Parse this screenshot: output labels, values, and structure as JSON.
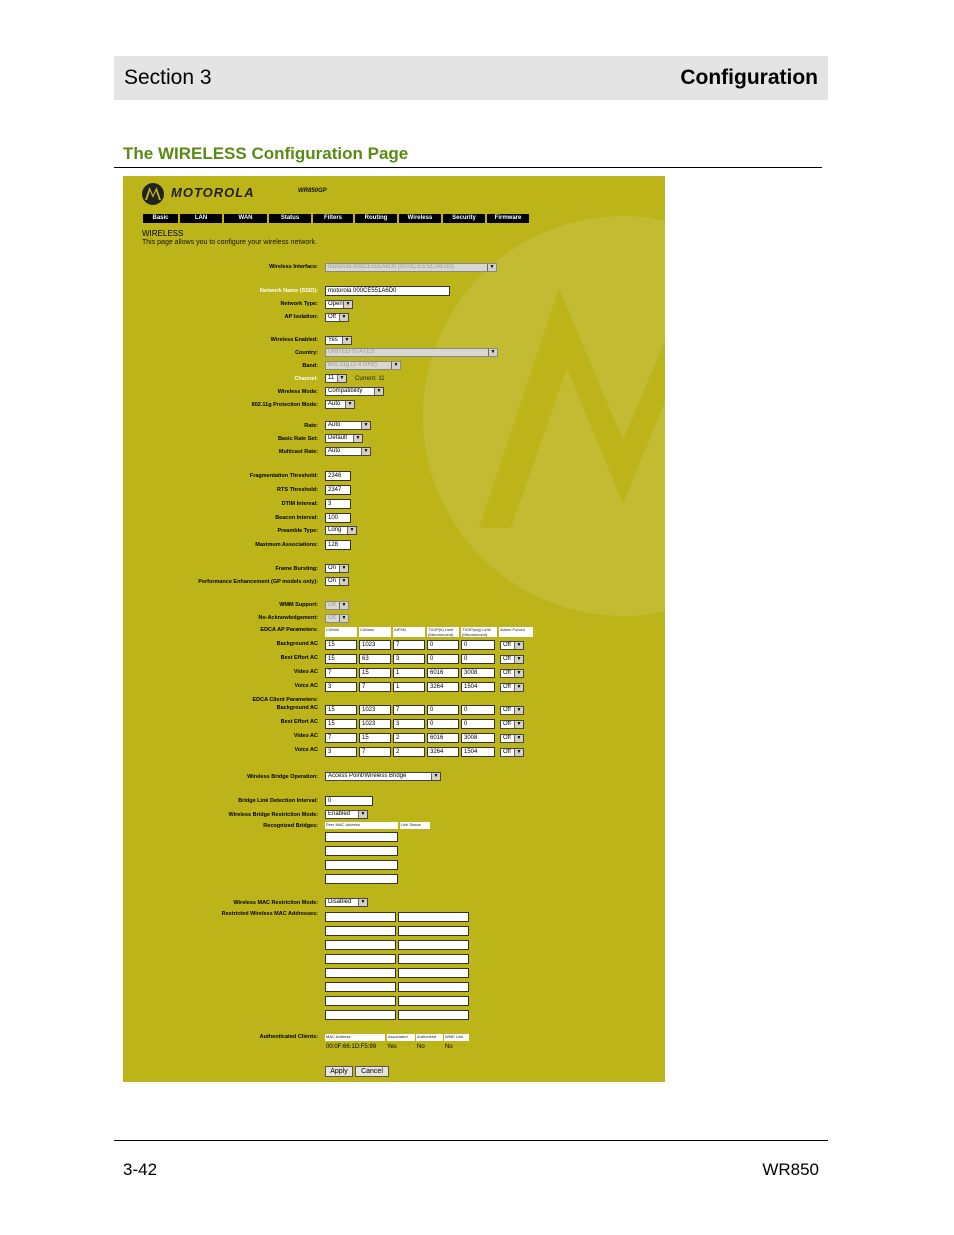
{
  "header": {
    "section": "Section 3",
    "chapter": "Configuration"
  },
  "page_title": "The WIRELESS Configuration Page",
  "footer": {
    "page_number": "3-42",
    "model": "WR850"
  },
  "screenshot": {
    "brand": "MOTOROLA",
    "model": "WR850GP",
    "tabs": [
      "Basic",
      "LAN",
      "WAN",
      "Status",
      "Filters",
      "Routing",
      "Wireless",
      "Security",
      "Firmware"
    ],
    "title": "WIRELESS",
    "description": "This page allows you to configure your wireless network.",
    "fields": {
      "wireless_interface": {
        "label": "Wireless Interface:",
        "value": "motorola 000CE551A6D0 (00:0C:E5:51:A6:D0)"
      },
      "ssid": {
        "label": "Network Name (SSID):",
        "value": "motorola 000CE551A6D0"
      },
      "network_type": {
        "label": "Network Type:",
        "value": "Open"
      },
      "ap_isolation": {
        "label": "AP Isolation:",
        "value": "Off"
      },
      "wireless_enabled": {
        "label": "Wireless Enabled:",
        "value": "Yes"
      },
      "country": {
        "label": "Country:",
        "value": "UNITED STATES"
      },
      "band": {
        "label": "Band:",
        "value": "802.11g (2.4 GHz)"
      },
      "channel": {
        "label": "Channel:",
        "value": "11",
        "current": "Current: 11"
      },
      "wireless_mode": {
        "label": "Wireless Mode:",
        "value": "Compatibility"
      },
      "protection_mode": {
        "label": "802.11g Protection Mode:",
        "value": "Auto"
      },
      "rate": {
        "label": "Rate:",
        "value": "Auto"
      },
      "basic_rate_set": {
        "label": "Basic Rate Set:",
        "value": "Default"
      },
      "multicast_rate": {
        "label": "Multicast Rate:",
        "value": "Auto"
      },
      "frag_threshold": {
        "label": "Fragmentation Threshold:",
        "value": "2346"
      },
      "rts_threshold": {
        "label": "RTS Threshold:",
        "value": "2347"
      },
      "dtim_interval": {
        "label": "DTIM Interval:",
        "value": "3"
      },
      "beacon_interval": {
        "label": "Beacon Interval:",
        "value": "100"
      },
      "preamble_type": {
        "label": "Preamble Type:",
        "value": "Long"
      },
      "max_associations": {
        "label": "Maximum Associations:",
        "value": "128"
      },
      "frame_bursting": {
        "label": "Frame Bursting:",
        "value": "On"
      },
      "perf_enhancement": {
        "label": "Performance Enhancement (GP models only):",
        "value": "On"
      },
      "wmm_support": {
        "label": "WMM Support:",
        "value": "Off"
      },
      "no_ack": {
        "label": "No-Acknowledgement:",
        "value": "Off"
      },
      "bridge_operation": {
        "label": "Wireless Bridge Operation:",
        "value": "Access Point/Wireless Bridge"
      },
      "bridge_link_interval": {
        "label": "Bridge Link Detection Interval:",
        "value": "0"
      },
      "bridge_restriction": {
        "label": "Wireless Bridge Restriction Mode:",
        "value": "Enabled"
      },
      "recognized_bridges": {
        "label": "Recognized Bridges:",
        "col_mac": "Peer MAC Address",
        "col_status": "Link Status"
      },
      "mac_restriction": {
        "label": "Wireless MAC Restriction Mode:",
        "value": "Disabled"
      },
      "restricted_macs": {
        "label": "Restricted Wireless MAC Addresses:"
      },
      "auth_clients": {
        "label": "Authenticated Clients:",
        "columns": [
          "MAC Address",
          "Associated",
          "Authorized",
          "WME Link"
        ],
        "row": [
          "00:0F:66:1D:F5:99",
          "Yes",
          "No",
          "No"
        ]
      }
    },
    "edca_ap": {
      "label": "EDCA AP Parameters:",
      "columns": [
        "CWmin",
        "CWmax",
        "AIFSN",
        "TXOP(b) Limit (Microsecond)",
        "TXOP(a/g) Limit (Microsecond)",
        "Admin Forced"
      ],
      "rows": [
        {
          "label": "Background AC",
          "values": [
            "15",
            "1023",
            "7",
            "0",
            "0"
          ],
          "forced": "Off"
        },
        {
          "label": "Best Effort AC",
          "values": [
            "15",
            "63",
            "3",
            "0",
            "0"
          ],
          "forced": "Off"
        },
        {
          "label": "Video AC",
          "values": [
            "7",
            "15",
            "1",
            "6016",
            "3008"
          ],
          "forced": "Off"
        },
        {
          "label": "Voice AC",
          "values": [
            "3",
            "7",
            "1",
            "3264",
            "1504"
          ],
          "forced": "Off"
        }
      ]
    },
    "edca_client": {
      "label": "EDCA Client Parameters:",
      "rows": [
        {
          "label": "Background AC",
          "values": [
            "15",
            "1023",
            "7",
            "0",
            "0"
          ],
          "forced": "Off"
        },
        {
          "label": "Best Effort AC",
          "values": [
            "15",
            "1023",
            "3",
            "0",
            "0"
          ],
          "forced": "Off"
        },
        {
          "label": "Video AC",
          "values": [
            "7",
            "15",
            "2",
            "6016",
            "3008"
          ],
          "forced": "Off"
        },
        {
          "label": "Voice AC",
          "values": [
            "3",
            "7",
            "2",
            "3264",
            "1504"
          ],
          "forced": "Off"
        }
      ]
    },
    "buttons": {
      "apply": "Apply",
      "cancel": "Cancel"
    }
  }
}
